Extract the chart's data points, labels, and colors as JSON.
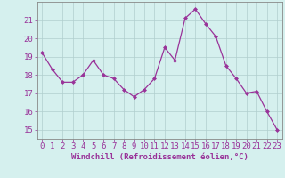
{
  "x": [
    0,
    1,
    2,
    3,
    4,
    5,
    6,
    7,
    8,
    9,
    10,
    11,
    12,
    13,
    14,
    15,
    16,
    17,
    18,
    19,
    20,
    21,
    22,
    23
  ],
  "y": [
    19.2,
    18.3,
    17.6,
    17.6,
    18.0,
    18.8,
    18.0,
    17.8,
    17.2,
    16.8,
    17.2,
    17.8,
    19.5,
    18.8,
    21.1,
    21.6,
    20.8,
    20.1,
    18.5,
    17.8,
    17.0,
    17.1,
    16.0,
    15.0
  ],
  "line_color": "#993399",
  "marker": "D",
  "marker_size": 2.0,
  "line_width": 0.9,
  "xlabel": "Windchill (Refroidissement éolien,°C)",
  "xlabel_fontsize": 6.5,
  "ylim": [
    14.5,
    22.0
  ],
  "xlim": [
    -0.5,
    23.5
  ],
  "yticks": [
    15,
    16,
    17,
    18,
    19,
    20,
    21
  ],
  "xticks": [
    0,
    1,
    2,
    3,
    4,
    5,
    6,
    7,
    8,
    9,
    10,
    11,
    12,
    13,
    14,
    15,
    16,
    17,
    18,
    19,
    20,
    21,
    22,
    23
  ],
  "background_color": "#d5f0ee",
  "grid_color": "#b0cece",
  "tick_fontsize": 6.5,
  "fig_bg_color": "#d5f0ee",
  "spine_color": "#888888"
}
